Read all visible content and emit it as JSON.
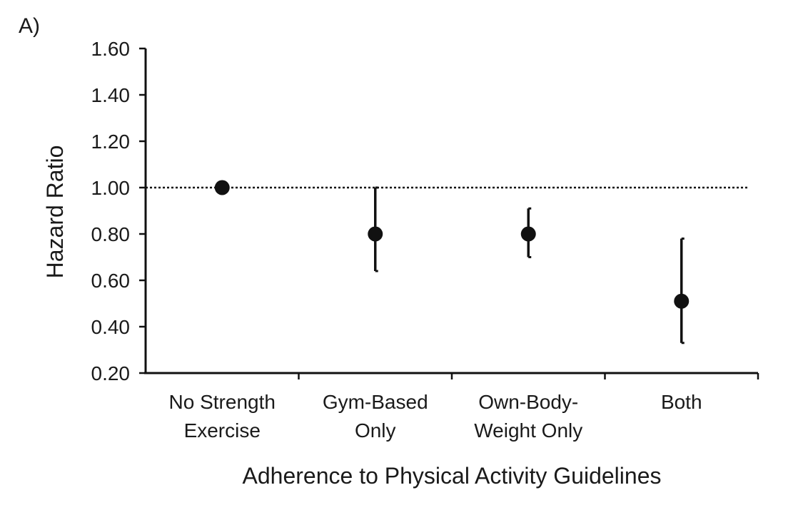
{
  "chart_data": {
    "type": "scatter",
    "panel_label": "A)",
    "title": "",
    "xlabel": "Adherence to Physical Activity Guidelines",
    "ylabel": "Hazard Ratio",
    "ylim": [
      0.2,
      1.6
    ],
    "yticks": [
      "0.20",
      "0.40",
      "0.60",
      "0.80",
      "1.00",
      "1.20",
      "1.40",
      "1.60"
    ],
    "reference_line": 1.0,
    "grid": false,
    "categories": [
      [
        "No Strength",
        "Exercise"
      ],
      [
        "Gym-Based",
        "Only"
      ],
      [
        "Own-Body-",
        "Weight Only"
      ],
      [
        "Both"
      ]
    ],
    "values": [
      1.0,
      0.8,
      0.8,
      0.51
    ],
    "ci_low": [
      null,
      0.64,
      0.7,
      0.33
    ],
    "ci_high": [
      null,
      1.0,
      0.91,
      0.78
    ],
    "color": "#111111"
  }
}
